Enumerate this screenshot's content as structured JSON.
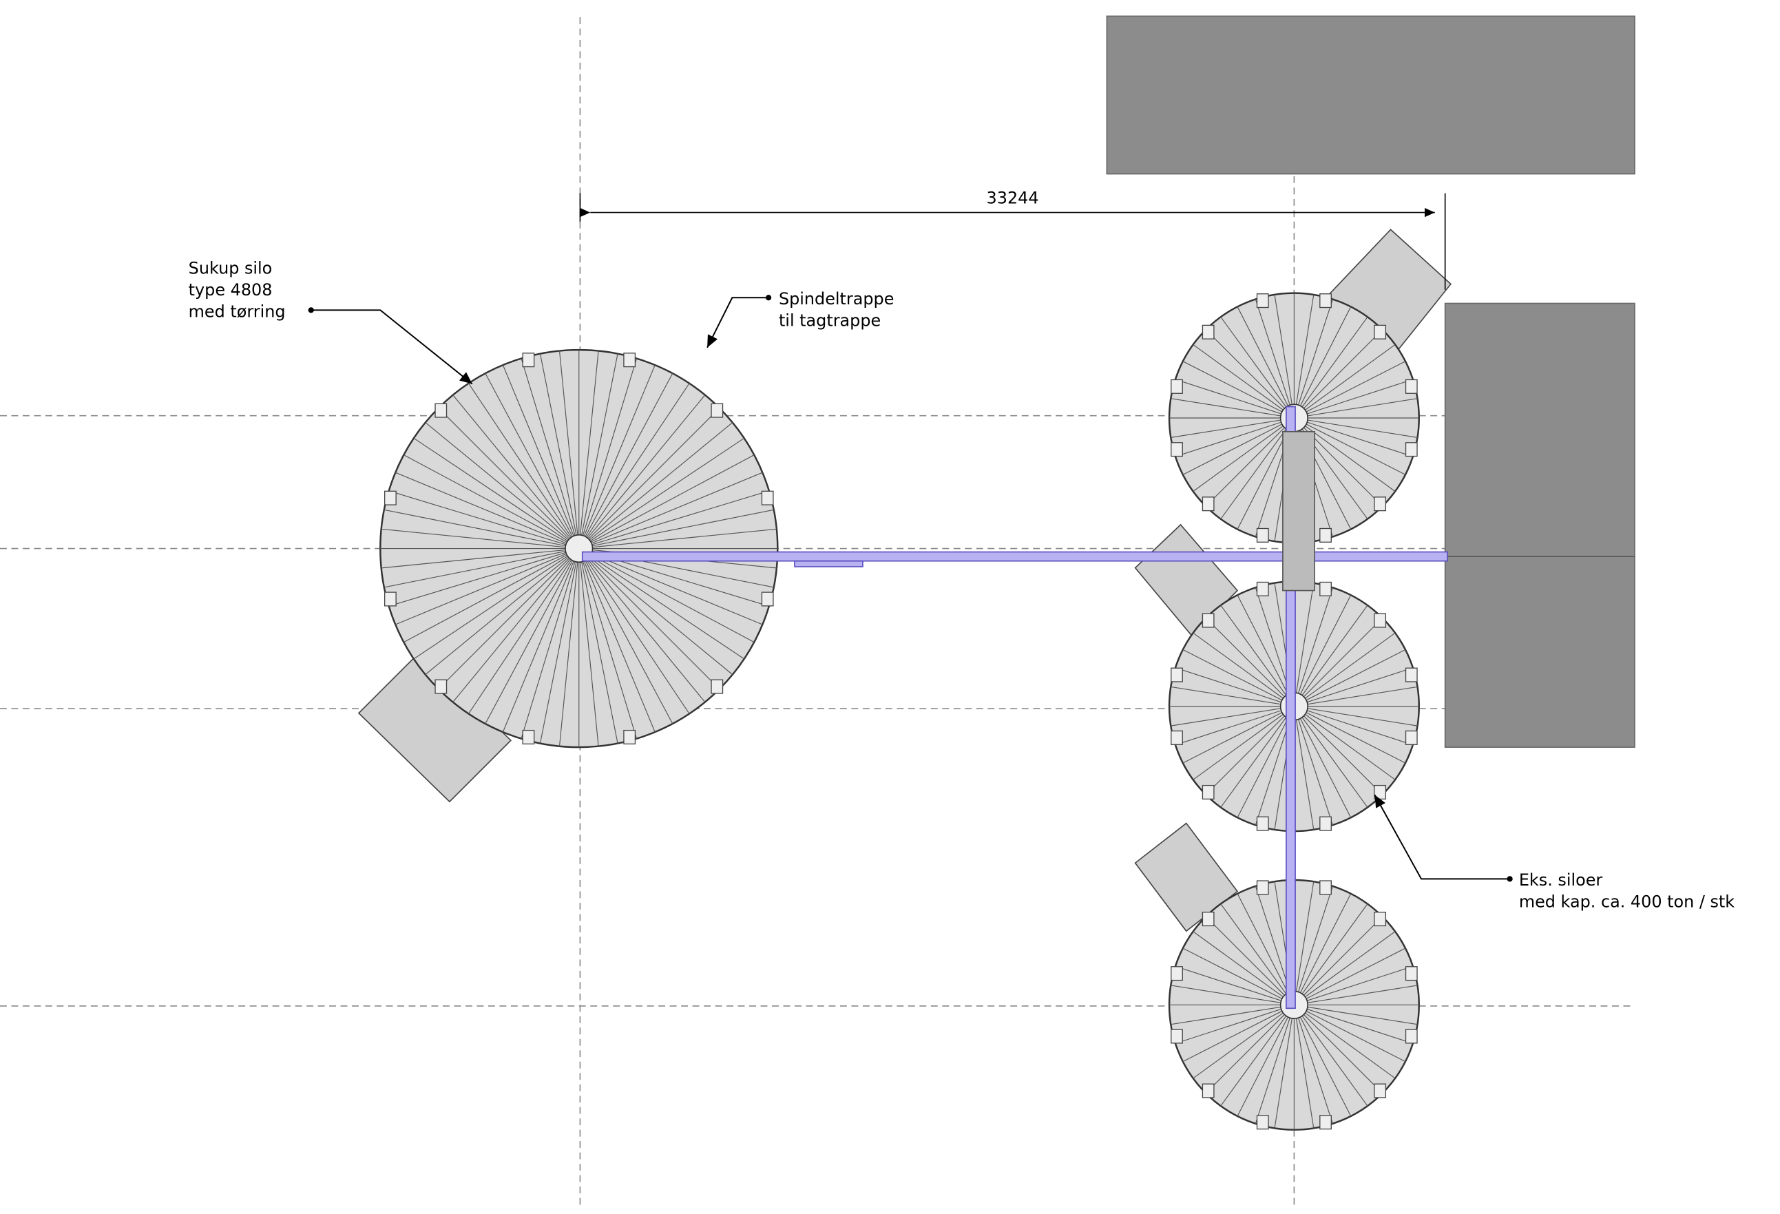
{
  "dimension": {
    "label": "33244"
  },
  "annotations": [
    {
      "lines": [
        "Sukup silo",
        "type 4808",
        "med tørring"
      ]
    },
    {
      "lines": [
        "Spindeltrappe",
        "til tagtrappe"
      ]
    },
    {
      "lines": [
        "Eks. siloer",
        "med kap. ca. 400 ton / stk"
      ]
    }
  ]
}
